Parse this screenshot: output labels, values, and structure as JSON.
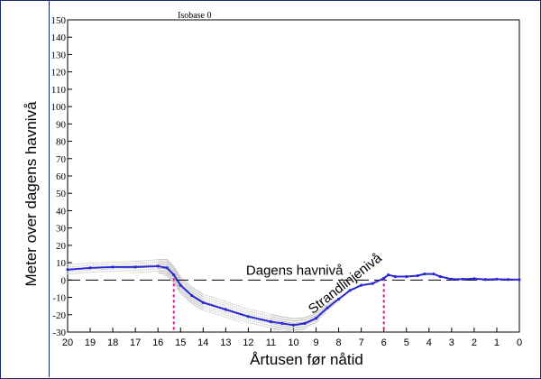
{
  "chart_data": {
    "type": "line",
    "title": "Isobase 0",
    "xlabel": "Årtusen før nåtid",
    "ylabel": "Meter over dagens havnivå",
    "xlim": [
      20,
      0
    ],
    "ylim": [
      -30,
      150
    ],
    "x_ticks": [
      20,
      19,
      18,
      17,
      16,
      15,
      14,
      13,
      12,
      11,
      10,
      9,
      8,
      7,
      6,
      5,
      4,
      3,
      2,
      1,
      0
    ],
    "y_ticks": [
      -30,
      -20,
      -10,
      0,
      10,
      20,
      30,
      40,
      50,
      60,
      70,
      80,
      90,
      100,
      110,
      120,
      130,
      140,
      150
    ],
    "grid": false,
    "series": [
      {
        "type": "line",
        "color": "#2a2ad0",
        "x": [
          20,
          19,
          18,
          17,
          16,
          15.6,
          15.3,
          15,
          14.5,
          14,
          13,
          12,
          11,
          10.5,
          10,
          9.5,
          9,
          8.5,
          8,
          7.5,
          7,
          6.5,
          6,
          5.8,
          5.5,
          5,
          4.5,
          4.2,
          3.8,
          3.5,
          3,
          2.5,
          2,
          1.5,
          1,
          0.5,
          0
        ],
        "y": [
          6,
          7,
          7.5,
          7.5,
          8,
          7,
          3,
          -3,
          -9,
          -13,
          -17,
          -21,
          -24,
          -25,
          -26,
          -25,
          -22,
          -16,
          -11,
          -6,
          -3,
          -2,
          1,
          3,
          2,
          2,
          2.5,
          3.5,
          3.5,
          2,
          0.5,
          0.5,
          0.8,
          0.3,
          0.5,
          0.3,
          0.2
        ],
        "uncertainty": [
          3,
          3,
          3,
          3.5,
          4,
          5,
          5,
          5,
          5,
          5,
          5,
          4.5,
          4.5,
          4,
          4,
          3.5,
          3,
          2,
          1,
          1,
          1,
          1,
          1,
          1,
          1,
          1,
          1,
          1,
          1,
          1,
          1,
          1,
          1,
          1,
          1,
          1,
          1
        ]
      }
    ],
    "reference_line": {
      "y": 0,
      "style": "dashed",
      "label": "Dagens havnivå"
    },
    "markers": [
      {
        "x": 15.3,
        "color": "#e0128a",
        "style": "dashed"
      },
      {
        "x": 6,
        "color": "#e0128a",
        "style": "dashed"
      }
    ],
    "annotations": [
      {
        "text": "Dagens havnivå",
        "x": 12.1,
        "y": 3
      },
      {
        "text": "Strandlinjenivå",
        "x": 7.6,
        "y": -4,
        "rotation": -38
      }
    ]
  }
}
